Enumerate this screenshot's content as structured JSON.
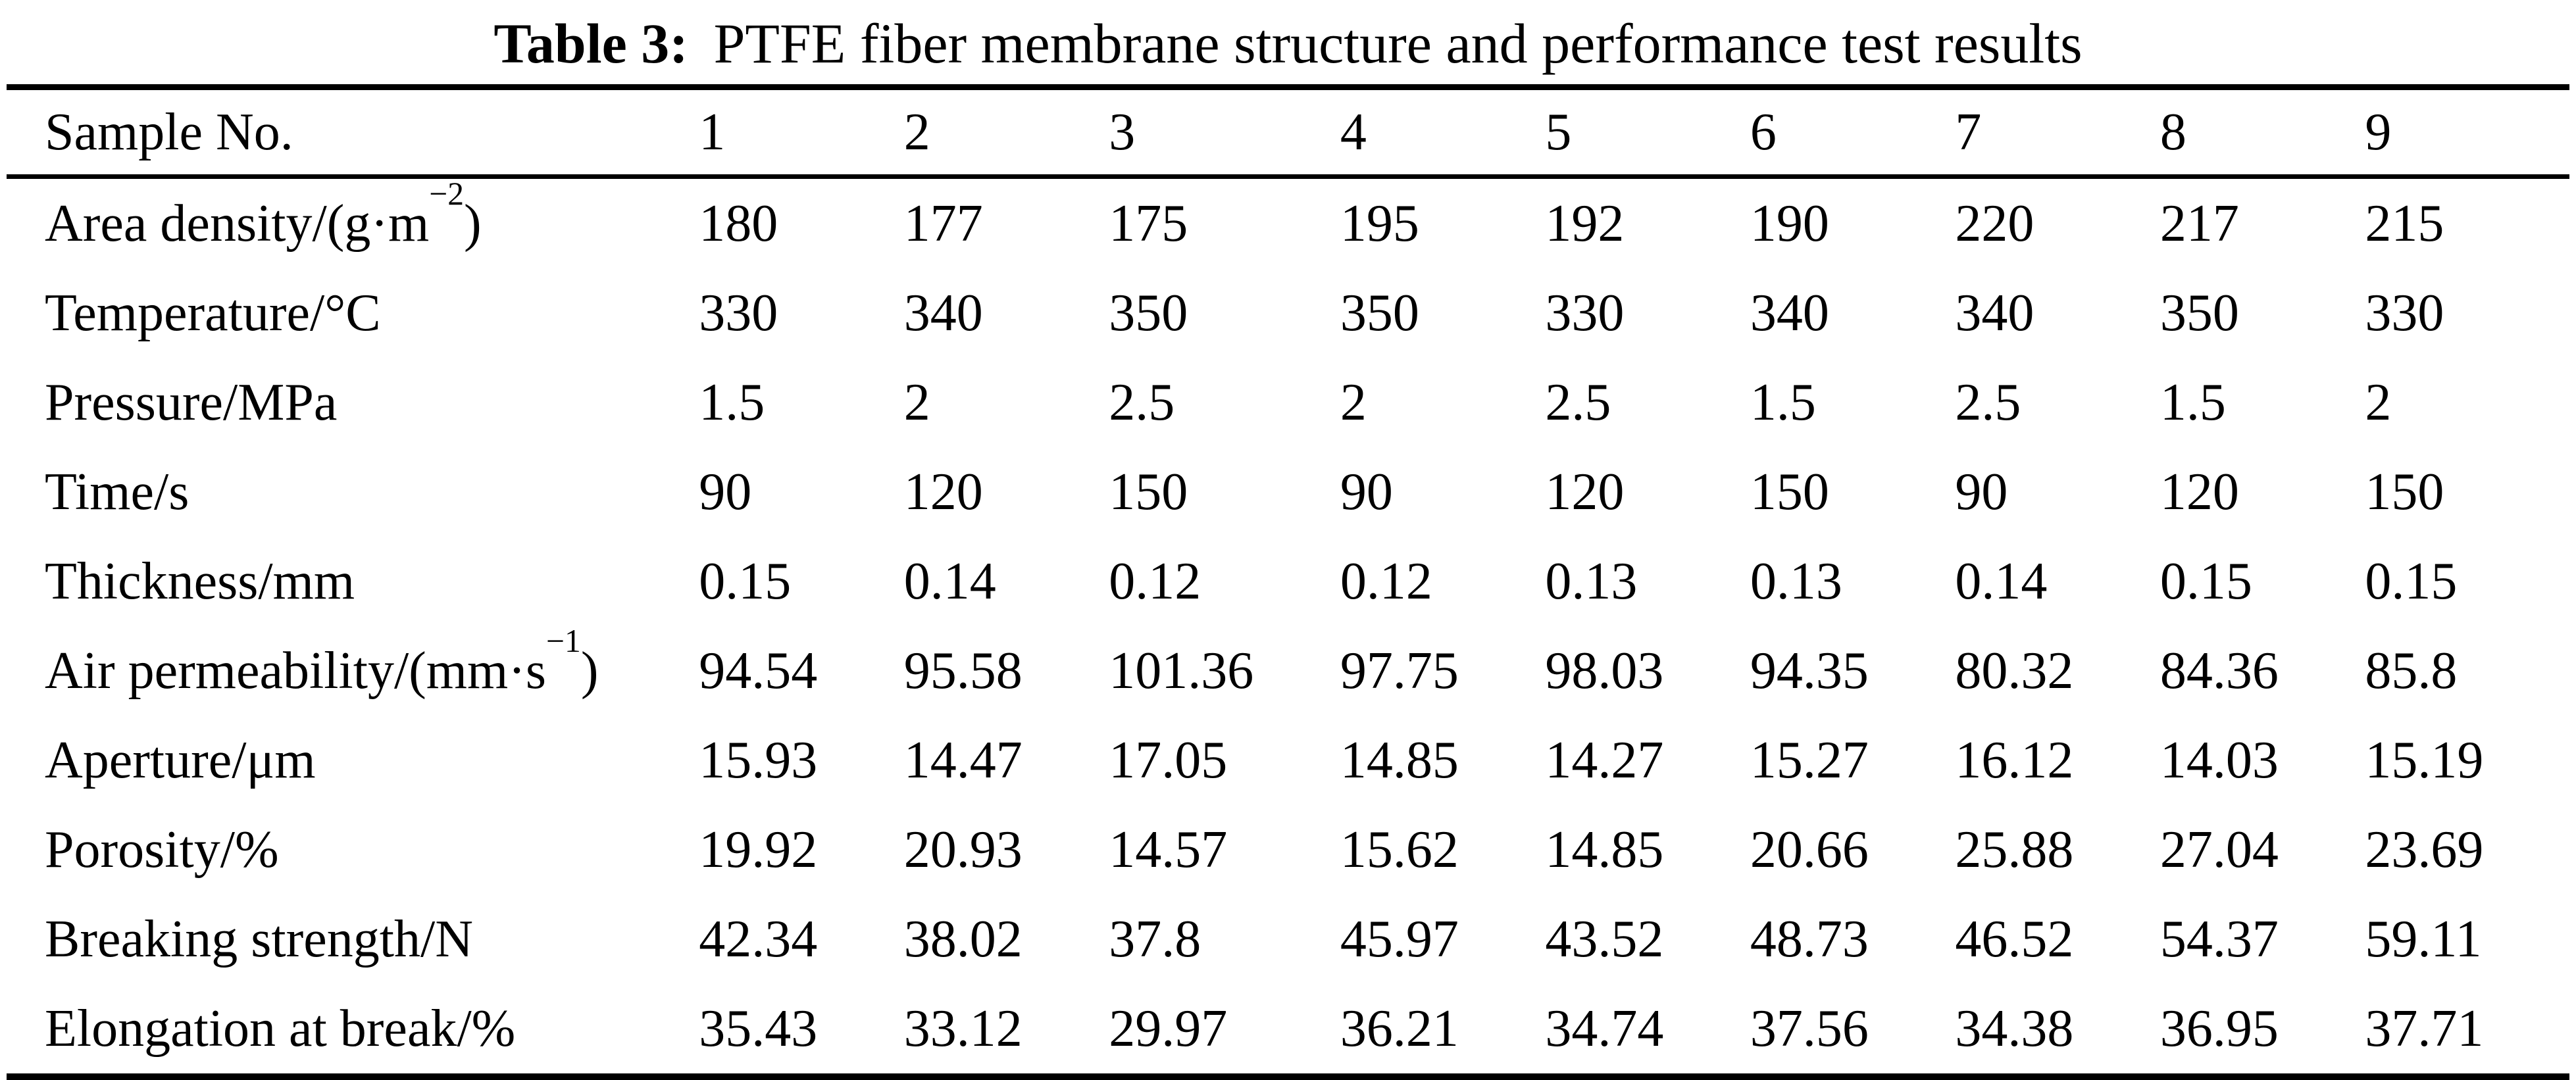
{
  "title": {
    "label": "Table 3:",
    "text": "PTFE fiber membrane structure and performance test results"
  },
  "table": {
    "header": {
      "label": "Sample No.",
      "values": [
        "1",
        "2",
        "3",
        "4",
        "5",
        "6",
        "7",
        "8",
        "9"
      ]
    },
    "rows": [
      {
        "label": {
          "prefix": "Area density/(g·m",
          "sup": "−2",
          "suffix": ")"
        },
        "values": [
          "180",
          "177",
          "175",
          "195",
          "192",
          "190",
          "220",
          "217",
          "215"
        ]
      },
      {
        "label": {
          "prefix": "Temperature/°C",
          "sup": "",
          "suffix": ""
        },
        "values": [
          "330",
          "340",
          "350",
          "350",
          "330",
          "340",
          "340",
          "350",
          "330"
        ]
      },
      {
        "label": {
          "prefix": "Pressure/MPa",
          "sup": "",
          "suffix": ""
        },
        "values": [
          "1.5",
          "2",
          "2.5",
          "2",
          "2.5",
          "1.5",
          "2.5",
          "1.5",
          "2"
        ]
      },
      {
        "label": {
          "prefix": "Time/s",
          "sup": "",
          "suffix": ""
        },
        "values": [
          "90",
          "120",
          "150",
          "90",
          "120",
          "150",
          "90",
          "120",
          "150"
        ]
      },
      {
        "label": {
          "prefix": "Thickness/mm",
          "sup": "",
          "suffix": ""
        },
        "values": [
          "0.15",
          "0.14",
          "0.12",
          "0.12",
          "0.13",
          "0.13",
          "0.14",
          "0.15",
          "0.15"
        ]
      },
      {
        "label": {
          "prefix": "Air permeability/(mm·s",
          "sup": "−1",
          "suffix": ")"
        },
        "values": [
          "94.54",
          "95.58",
          "101.36",
          "97.75",
          "98.03",
          "94.35",
          "80.32",
          "84.36",
          "85.8"
        ]
      },
      {
        "label": {
          "prefix": "Aperture/μm",
          "sup": "",
          "suffix": ""
        },
        "values": [
          "15.93",
          "14.47",
          "17.05",
          "14.85",
          "14.27",
          "15.27",
          "16.12",
          "14.03",
          "15.19"
        ]
      },
      {
        "label": {
          "prefix": "Porosity/%",
          "sup": "",
          "suffix": ""
        },
        "values": [
          "19.92",
          "20.93",
          "14.57",
          "15.62",
          "14.85",
          "20.66",
          "25.88",
          "27.04",
          "23.69"
        ]
      },
      {
        "label": {
          "prefix": "Breaking strength/N",
          "sup": "",
          "suffix": ""
        },
        "values": [
          "42.34",
          "38.02",
          "37.8",
          "45.97",
          "43.52",
          "48.73",
          "46.52",
          "54.37",
          "59.11"
        ]
      },
      {
        "label": {
          "prefix": "Elongation at break/%",
          "sup": "",
          "suffix": ""
        },
        "values": [
          "35.43",
          "33.12",
          "29.97",
          "36.21",
          "34.74",
          "37.56",
          "34.38",
          "36.95",
          "37.71"
        ]
      }
    ]
  },
  "chart_data": {
    "type": "table",
    "title": "Table 3: PTFE fiber membrane structure and performance test results",
    "categories": [
      1,
      2,
      3,
      4,
      5,
      6,
      7,
      8,
      9
    ],
    "series": [
      {
        "name": "Area density/(g·m−2)",
        "values": [
          180,
          177,
          175,
          195,
          192,
          190,
          220,
          217,
          215
        ]
      },
      {
        "name": "Temperature/°C",
        "values": [
          330,
          340,
          350,
          350,
          330,
          340,
          340,
          350,
          330
        ]
      },
      {
        "name": "Pressure/MPa",
        "values": [
          1.5,
          2,
          2.5,
          2,
          2.5,
          1.5,
          2.5,
          1.5,
          2
        ]
      },
      {
        "name": "Time/s",
        "values": [
          90,
          120,
          150,
          90,
          120,
          150,
          90,
          120,
          150
        ]
      },
      {
        "name": "Thickness/mm",
        "values": [
          0.15,
          0.14,
          0.12,
          0.12,
          0.13,
          0.13,
          0.14,
          0.15,
          0.15
        ]
      },
      {
        "name": "Air permeability/(mm·s−1)",
        "values": [
          94.54,
          95.58,
          101.36,
          97.75,
          98.03,
          94.35,
          80.32,
          84.36,
          85.8
        ]
      },
      {
        "name": "Aperture/μm",
        "values": [
          15.93,
          14.47,
          17.05,
          14.85,
          14.27,
          15.27,
          16.12,
          14.03,
          15.19
        ]
      },
      {
        "name": "Porosity/%",
        "values": [
          19.92,
          20.93,
          14.57,
          15.62,
          14.85,
          20.66,
          25.88,
          27.04,
          23.69
        ]
      },
      {
        "name": "Breaking strength/N",
        "values": [
          42.34,
          38.02,
          37.8,
          45.97,
          43.52,
          48.73,
          46.52,
          54.37,
          59.11
        ]
      },
      {
        "name": "Elongation at break/%",
        "values": [
          35.43,
          33.12,
          29.97,
          36.21,
          34.74,
          37.56,
          34.38,
          36.95,
          37.71
        ]
      }
    ]
  }
}
